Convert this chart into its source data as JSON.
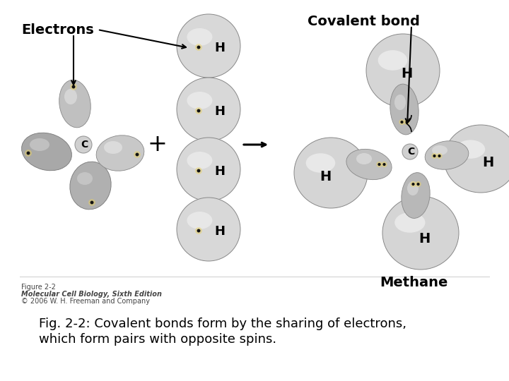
{
  "bg_color": "#ffffff",
  "title_line1": "Fig. 2-2: Covalent bonds form by the sharing of electrons,",
  "title_line2": "which form pairs with opposite spins.",
  "label_electrons": "Electrons",
  "label_covalent": "Covalent bond",
  "label_methane": "Methane",
  "label_C": "C",
  "label_H": "H",
  "label_plus": "+",
  "small_text_line1": "Figure 2-2",
  "small_text_line2": "Molecular Cell Biology, Sixth Edition",
  "small_text_line3": "© 2006 W. H. Freeman and Company",
  "arrow_color": "#000000",
  "text_color": "#000000",
  "font_size_label": 14,
  "font_size_H": 13,
  "font_size_C": 10,
  "font_size_caption": 13,
  "font_size_small": 7
}
